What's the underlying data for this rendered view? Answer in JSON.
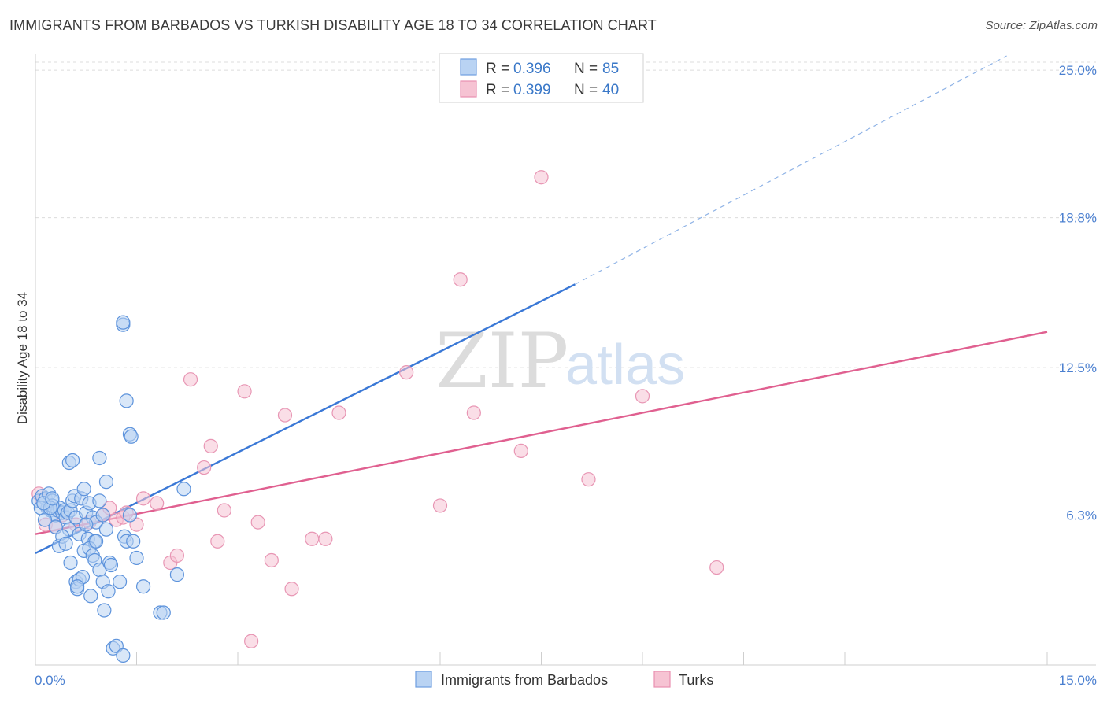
{
  "title": "IMMIGRANTS FROM BARBADOS VS TURKISH DISABILITY AGE 18 TO 34 CORRELATION CHART",
  "source": "Source: ZipAtlas.com",
  "watermark": {
    "zip": "ZIP",
    "atlas": "atlas"
  },
  "colors": {
    "blue": "#3a78d6",
    "blue_fill": "#b9d3f3",
    "pink": "#e06090",
    "pink_fill": "#f6c3d3",
    "grid": "#dcdcdc",
    "tick_text": "#4a7fd0"
  },
  "legend": {
    "rows": [
      {
        "r_label": "R = ",
        "r_value": "0.396",
        "n_label": "N = ",
        "n_value": "85"
      },
      {
        "r_label": "R = ",
        "r_value": "0.399",
        "n_label": "N = ",
        "n_value": "40"
      }
    ]
  },
  "chart_data": {
    "type": "scatter",
    "title": "IMMIGRANTS FROM BARBADOS VS TURKISH DISABILITY AGE 18 TO 34 CORRELATION CHART",
    "xlabel": "",
    "ylabel": "Disability Age 18 to 34",
    "xlim": [
      0,
      15
    ],
    "ylim": [
      0,
      25.7
    ],
    "x_tick_labels": [
      "0.0%",
      "15.0%"
    ],
    "y_ticks": [
      6.3,
      12.5,
      18.8,
      25.0
    ],
    "y_tick_labels": [
      "6.3%",
      "12.5%",
      "18.8%",
      "25.0%"
    ],
    "grid": true,
    "legend_position": "top-center",
    "series": [
      {
        "name": "Immigrants from Barbados",
        "r": 0.396,
        "n": 85,
        "trend": {
          "x0": 0,
          "y0": 4.7,
          "x1": 8.0,
          "y1": 16.0,
          "dash_to_x": 14.4,
          "dash_to_y": 25.6
        },
        "points": [
          [
            0.05,
            6.9
          ],
          [
            0.1,
            7.1
          ],
          [
            0.12,
            6.8
          ],
          [
            0.15,
            7.0
          ],
          [
            0.18,
            6.6
          ],
          [
            0.2,
            7.2
          ],
          [
            0.22,
            6.5
          ],
          [
            0.25,
            6.9
          ],
          [
            0.28,
            6.4
          ],
          [
            0.3,
            6.3
          ],
          [
            0.08,
            6.6
          ],
          [
            0.14,
            6.1
          ],
          [
            0.33,
            6.5
          ],
          [
            0.36,
            6.6
          ],
          [
            0.4,
            6.4
          ],
          [
            0.43,
            6.5
          ],
          [
            0.45,
            6.2
          ],
          [
            0.48,
            6.4
          ],
          [
            0.5,
            5.7
          ],
          [
            0.52,
            6.5
          ],
          [
            0.55,
            6.9
          ],
          [
            0.58,
            7.1
          ],
          [
            0.6,
            6.2
          ],
          [
            0.65,
            5.5
          ],
          [
            0.68,
            7.0
          ],
          [
            0.72,
            7.4
          ],
          [
            0.75,
            6.4
          ],
          [
            0.78,
            5.3
          ],
          [
            0.8,
            6.8
          ],
          [
            0.85,
            6.2
          ],
          [
            0.88,
            5.2
          ],
          [
            0.9,
            6.0
          ],
          [
            0.95,
            6.9
          ],
          [
            1.0,
            6.3
          ],
          [
            1.05,
            5.7
          ],
          [
            0.3,
            5.8
          ],
          [
            0.35,
            5.0
          ],
          [
            0.4,
            5.4
          ],
          [
            0.45,
            5.1
          ],
          [
            0.5,
            8.5
          ],
          [
            0.52,
            4.3
          ],
          [
            0.55,
            8.6
          ],
          [
            0.6,
            3.5
          ],
          [
            0.62,
            3.2
          ],
          [
            0.65,
            3.6
          ],
          [
            0.7,
            3.7
          ],
          [
            0.72,
            4.8
          ],
          [
            0.75,
            5.9
          ],
          [
            0.8,
            4.9
          ],
          [
            0.82,
            2.9
          ],
          [
            0.85,
            4.6
          ],
          [
            0.88,
            4.4
          ],
          [
            0.9,
            5.2
          ],
          [
            0.95,
            4.0
          ],
          [
            1.0,
            3.5
          ],
          [
            1.02,
            2.3
          ],
          [
            1.05,
            7.7
          ],
          [
            1.08,
            3.1
          ],
          [
            1.1,
            4.3
          ],
          [
            1.12,
            4.2
          ],
          [
            1.15,
            0.7
          ],
          [
            1.2,
            0.8
          ],
          [
            1.25,
            3.5
          ],
          [
            1.3,
            0.4
          ],
          [
            1.32,
            5.4
          ],
          [
            1.35,
            5.2
          ],
          [
            1.4,
            9.7
          ],
          [
            1.42,
            9.6
          ],
          [
            1.5,
            4.5
          ],
          [
            1.6,
            3.3
          ],
          [
            1.3,
            14.3
          ],
          [
            1.3,
            14.4
          ],
          [
            1.35,
            11.1
          ],
          [
            1.4,
            6.3
          ],
          [
            1.45,
            5.2
          ],
          [
            0.95,
            8.7
          ],
          [
            0.62,
            3.3
          ],
          [
            0.25,
            6.7
          ],
          [
            0.22,
            6.6
          ],
          [
            0.12,
            6.8
          ],
          [
            0.25,
            7.0
          ],
          [
            1.85,
            2.2
          ],
          [
            1.9,
            2.2
          ],
          [
            2.1,
            3.8
          ],
          [
            2.2,
            7.4
          ]
        ]
      },
      {
        "name": "Turks",
        "r": 0.399,
        "n": 40,
        "trend": {
          "x0": 0,
          "y0": 5.5,
          "x1": 15.0,
          "y1": 14.0
        },
        "points": [
          [
            0.05,
            7.2
          ],
          [
            0.1,
            6.9
          ],
          [
            0.15,
            5.9
          ],
          [
            0.3,
            5.8
          ],
          [
            0.4,
            6.3
          ],
          [
            0.6,
            5.9
          ],
          [
            0.8,
            6.0
          ],
          [
            1.0,
            6.3
          ],
          [
            1.1,
            6.6
          ],
          [
            1.2,
            6.1
          ],
          [
            1.3,
            6.2
          ],
          [
            1.35,
            6.4
          ],
          [
            1.5,
            5.9
          ],
          [
            1.6,
            7.0
          ],
          [
            1.8,
            6.8
          ],
          [
            2.0,
            4.3
          ],
          [
            2.1,
            4.6
          ],
          [
            2.3,
            12.0
          ],
          [
            2.5,
            8.3
          ],
          [
            2.6,
            9.2
          ],
          [
            2.7,
            5.2
          ],
          [
            2.8,
            6.5
          ],
          [
            3.1,
            11.5
          ],
          [
            3.3,
            6.0
          ],
          [
            3.5,
            4.4
          ],
          [
            3.7,
            10.5
          ],
          [
            3.8,
            3.2
          ],
          [
            4.1,
            5.3
          ],
          [
            4.3,
            5.3
          ],
          [
            4.5,
            10.6
          ],
          [
            5.5,
            12.3
          ],
          [
            6.0,
            6.7
          ],
          [
            6.3,
            16.2
          ],
          [
            6.5,
            10.6
          ],
          [
            7.2,
            9.0
          ],
          [
            7.5,
            20.5
          ],
          [
            8.2,
            7.8
          ],
          [
            9.0,
            11.3
          ],
          [
            10.1,
            4.1
          ],
          [
            3.2,
            1.0
          ]
        ]
      }
    ]
  },
  "bottom_legend": {
    "items": [
      "Immigrants from Barbados",
      "Turks"
    ]
  }
}
